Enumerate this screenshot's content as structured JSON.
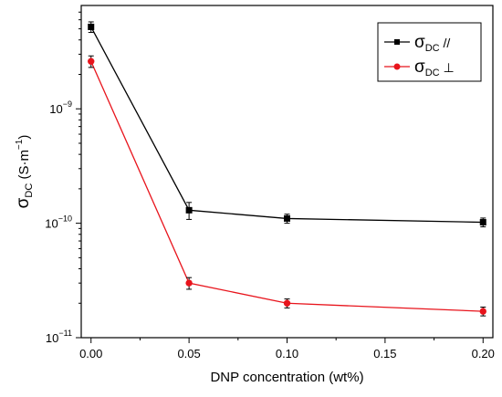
{
  "chart_data": {
    "type": "line",
    "xlabel": "DNP concentration (wt%)",
    "ylabel": "σDC (S·m⁻¹)",
    "ylabel_parts": {
      "main": "σ",
      "sub": "DC",
      "unit_open": " (S·m",
      "unit_sup": "−1",
      "unit_close": ")"
    },
    "y_scale": "log",
    "xlim": [
      -0.005,
      0.205
    ],
    "ylim": [
      1e-11,
      8e-09
    ],
    "x_ticks": [
      0.0,
      0.05,
      0.1,
      0.15,
      0.2
    ],
    "x_tick_labels": [
      "0.00",
      "0.05",
      "0.10",
      "0.15",
      "0.20"
    ],
    "y_major_ticks": [
      {
        "value": 1e-11,
        "mantissa": "10",
        "exponent": "−11"
      },
      {
        "value": 1e-10,
        "mantissa": "10",
        "exponent": "−10"
      },
      {
        "value": 1e-09,
        "mantissa": "10",
        "exponent": "−9"
      }
    ],
    "grid": false,
    "legend_position": "top-right",
    "series": [
      {
        "name": "σDC //",
        "legend_main": "σ",
        "legend_sub": "DC",
        "legend_suffix": " //",
        "color": "#000000",
        "marker": "square",
        "x": [
          0.0,
          0.05,
          0.1,
          0.2
        ],
        "y": [
          5.2e-09,
          1.3e-10,
          1.1e-10,
          1.02e-10
        ],
        "err": [
          5.5e-10,
          2.2e-11,
          1e-11,
          9e-12
        ]
      },
      {
        "name": "σDC ⊥",
        "legend_main": "σ",
        "legend_sub": "DC",
        "legend_suffix": " ⊥",
        "color": "#e8141c",
        "marker": "circle",
        "x": [
          0.0,
          0.05,
          0.1,
          0.2
        ],
        "y": [
          2.6e-09,
          3e-11,
          2e-11,
          1.7e-11
        ],
        "err": [
          3e-10,
          3.5e-12,
          1.8e-12,
          1.5e-12
        ]
      }
    ]
  }
}
